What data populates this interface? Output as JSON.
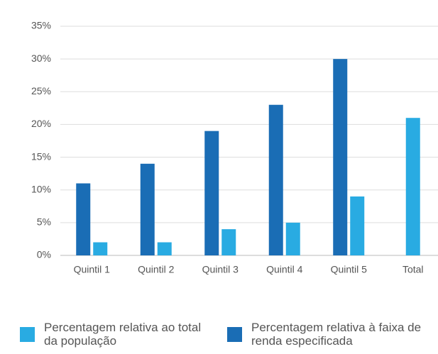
{
  "chart_data": {
    "type": "bar",
    "categories": [
      "Quintil 1",
      "Quintil 2",
      "Quintil 3",
      "Quintil 4",
      "Quintil 5",
      "Total"
    ],
    "series": [
      {
        "name": "Percentagem relativa à faixa de renda especificada",
        "color": "#1a6db5",
        "values": [
          11,
          14,
          19,
          23,
          30,
          null
        ]
      },
      {
        "name": "Percentagem relativa ao total da população",
        "color": "#29abe2",
        "values": [
          2,
          2,
          4,
          5,
          9,
          21
        ]
      }
    ],
    "ylim": [
      0,
      35
    ],
    "yticks": [
      {
        "value": 0,
        "label": "0%"
      },
      {
        "value": 5,
        "label": "5%"
      },
      {
        "value": 10,
        "label": "10%"
      },
      {
        "value": 15,
        "label": "15%"
      },
      {
        "value": 20,
        "label": "20%"
      },
      {
        "value": 25,
        "label": "25%"
      },
      {
        "value": 30,
        "label": "30%"
      },
      {
        "value": 35,
        "label": "35%"
      }
    ],
    "grid": true
  }
}
